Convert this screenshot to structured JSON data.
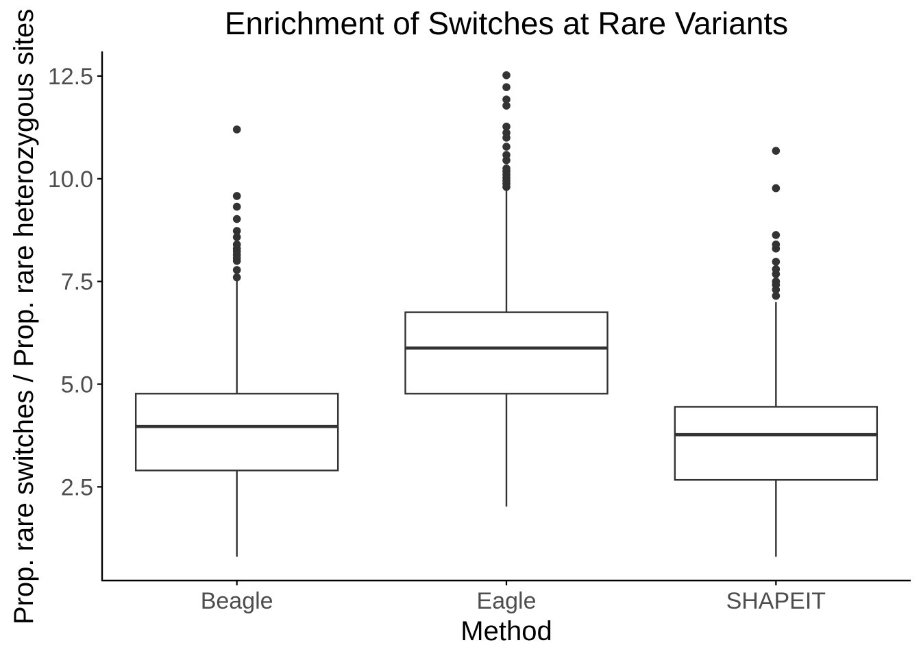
{
  "chart_data": {
    "type": "box",
    "title": "Enrichment of Switches at Rare Variants",
    "xlabel": "Method",
    "ylabel": "Prop. rare switches / Prop. rare heterozygous sites",
    "ylim": [
      0.22,
      13.1
    ],
    "y_ticks": [
      2.5,
      5.0,
      7.5,
      10.0,
      12.5
    ],
    "y_tick_labels": [
      "2.5",
      "5.0",
      "7.5",
      "10.0",
      "12.5"
    ],
    "grid": false,
    "legend": "none",
    "categories": [
      "Beagle",
      "Eagle",
      "SHAPEIT"
    ],
    "boxes": [
      {
        "category": "Beagle",
        "whisker_low": 0.8,
        "q1": 2.9,
        "median": 3.97,
        "q3": 4.77,
        "whisker_high": 7.55,
        "outliers": [
          7.6,
          7.78,
          8.0,
          8.07,
          8.15,
          8.23,
          8.3,
          8.4,
          8.58,
          8.73,
          9.02,
          9.32,
          9.58,
          11.2
        ]
      },
      {
        "category": "Eagle",
        "whisker_low": 2.02,
        "q1": 4.77,
        "median": 5.88,
        "q3": 6.75,
        "whisker_high": 9.72,
        "outliers": [
          9.8,
          9.88,
          9.95,
          10.02,
          10.1,
          10.18,
          10.25,
          10.45,
          10.58,
          10.78,
          11.0,
          11.12,
          11.27,
          11.78,
          11.93,
          12.23,
          12.52
        ]
      },
      {
        "category": "SHAPEIT",
        "whisker_low": 0.8,
        "q1": 2.67,
        "median": 3.77,
        "q3": 4.45,
        "whisker_high": 7.0,
        "outliers": [
          7.15,
          7.3,
          7.42,
          7.5,
          7.68,
          7.8,
          7.98,
          8.3,
          8.4,
          8.63,
          9.77,
          10.68
        ]
      }
    ],
    "colors": {
      "line": "#333333",
      "box_fill": "#ffffff",
      "tick_text": "#4d4d4d",
      "axis": "#000000"
    }
  }
}
